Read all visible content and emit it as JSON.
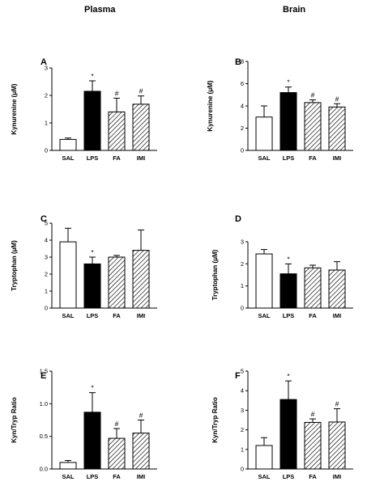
{
  "columns": {
    "left": "Plasma",
    "right": "Brain"
  },
  "chart_data": [
    {
      "id": "A",
      "type": "bar",
      "letter": "A",
      "ylabel": "Kynurenine (μM)",
      "categories": [
        "SAL",
        "LPS",
        "FA",
        "IMI"
      ],
      "ylim": [
        0,
        3
      ],
      "yticks": [
        0,
        1,
        2,
        3
      ],
      "values": [
        0.4,
        2.15,
        1.4,
        1.68
      ],
      "errors": [
        0.05,
        0.38,
        0.5,
        0.3
      ],
      "annotations": [
        "",
        "*",
        "#",
        "#"
      ],
      "fills": [
        "white",
        "black",
        "hatch",
        "hatch"
      ]
    },
    {
      "id": "B",
      "type": "bar",
      "letter": "B",
      "ylabel": "Kynurenine (μM)",
      "categories": [
        "SAL",
        "LPS",
        "FA",
        "IMI"
      ],
      "ylim": [
        0,
        8
      ],
      "yticks": [
        0,
        2,
        4,
        6,
        8
      ],
      "values": [
        3.0,
        5.2,
        4.3,
        3.9
      ],
      "errors": [
        1.0,
        0.5,
        0.25,
        0.3
      ],
      "annotations": [
        "",
        "*",
        "#",
        "#"
      ],
      "fills": [
        "white",
        "black",
        "hatch",
        "hatch"
      ]
    },
    {
      "id": "C",
      "type": "bar",
      "letter": "C",
      "ylabel": "Tryptophan (μM)",
      "categories": [
        "SAL",
        "LPS",
        "FA",
        "IMI"
      ],
      "ylim": [
        0,
        5
      ],
      "yticks": [
        0,
        1,
        2,
        3,
        4,
        5
      ],
      "values": [
        3.9,
        2.6,
        3.0,
        3.4
      ],
      "errors": [
        0.8,
        0.4,
        0.1,
        1.2
      ],
      "annotations": [
        "",
        "*",
        "",
        ""
      ],
      "fills": [
        "white",
        "black",
        "hatch",
        "hatch"
      ]
    },
    {
      "id": "D",
      "type": "bar",
      "letter": "D",
      "ylabel": "Tryptophan (μM)",
      "categories": [
        "SAL",
        "LPS",
        "FA",
        "IMI"
      ],
      "ylim": [
        0,
        3
      ],
      "yticks": [
        0,
        1,
        2,
        3
      ],
      "values": [
        2.45,
        1.55,
        1.82,
        1.72
      ],
      "errors": [
        0.2,
        0.45,
        0.12,
        0.38
      ],
      "annotations": [
        "",
        "*",
        "",
        ""
      ],
      "fills": [
        "white",
        "black",
        "hatch",
        "hatch"
      ]
    },
    {
      "id": "E",
      "type": "bar",
      "letter": "E",
      "ylabel": "Kyn/Tryp Ratio",
      "categories": [
        "SAL",
        "LPS",
        "FA",
        "IMI"
      ],
      "ylim": [
        0,
        1.5
      ],
      "yticks": [
        0.0,
        0.5,
        1.0,
        1.5
      ],
      "yticklabels": [
        "0.0",
        "0.5",
        "1.0",
        "1.5"
      ],
      "values": [
        0.1,
        0.87,
        0.47,
        0.55
      ],
      "errors": [
        0.03,
        0.3,
        0.15,
        0.2
      ],
      "annotations": [
        "",
        "*",
        "#",
        "#"
      ],
      "fills": [
        "white",
        "black",
        "hatch",
        "hatch"
      ]
    },
    {
      "id": "F",
      "type": "bar",
      "letter": "F",
      "ylabel": "Kyn/Tryp Ratio",
      "categories": [
        "SAL",
        "LPS",
        "FA",
        "IMI"
      ],
      "ylim": [
        0,
        5
      ],
      "yticks": [
        0,
        1,
        2,
        3,
        4,
        5
      ],
      "values": [
        1.2,
        3.55,
        2.38,
        2.4
      ],
      "errors": [
        0.4,
        0.95,
        0.18,
        0.68
      ],
      "annotations": [
        "",
        "*",
        "#",
        "#"
      ],
      "fills": [
        "white",
        "black",
        "hatch",
        "hatch"
      ]
    }
  ]
}
